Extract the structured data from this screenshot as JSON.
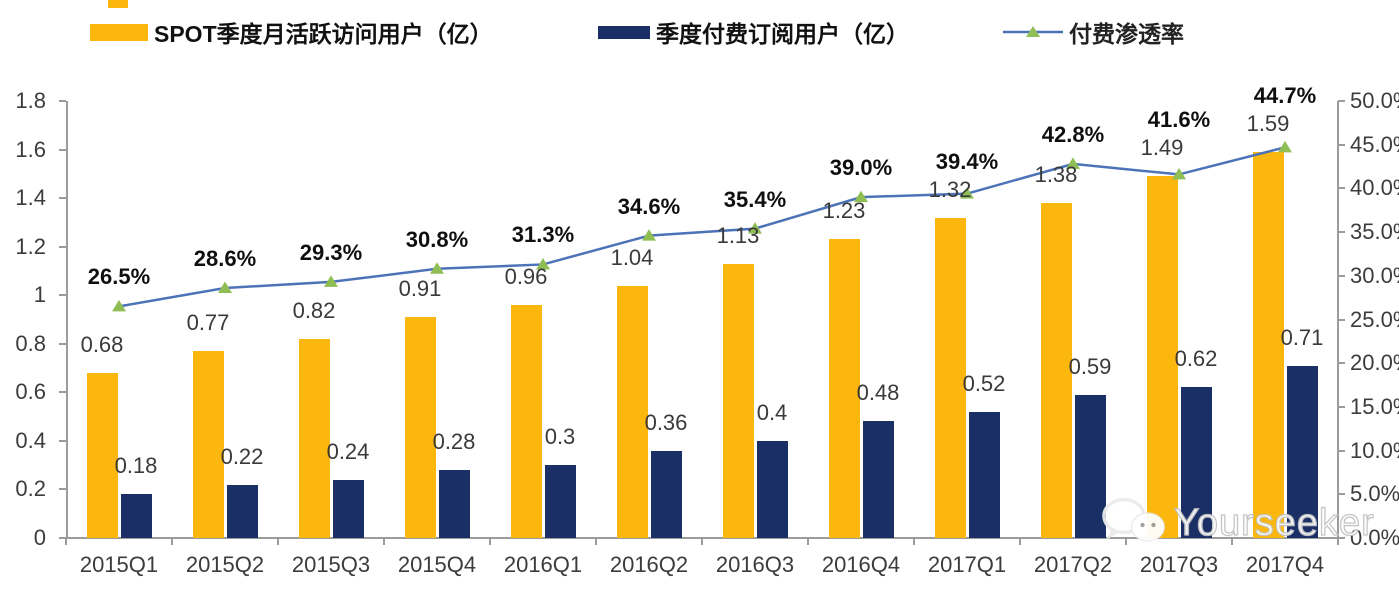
{
  "legend": [
    {
      "label": "SPOT季度月活跃访问用户（亿）",
      "swatch": "bar",
      "color": "#FBB70D"
    },
    {
      "label": "季度付费订阅用户（亿）",
      "swatch": "bar",
      "color": "#1A2F66"
    },
    {
      "label": "付费渗透率",
      "swatch": "line-triangle",
      "color": "#4C72B8",
      "marker_color": "#8FBE55"
    }
  ],
  "watermark": {
    "text": "Yourseeker",
    "icon": "wechat-icon"
  },
  "colors": {
    "bar_mau": "#FBB70D",
    "bar_subs": "#1A2F66",
    "line": "#4C72B8",
    "marker": "#8FBE55",
    "axis": "#9b9b9b"
  },
  "chart_data": {
    "type": "bar",
    "combo": "dual-axis bar + line",
    "title": "",
    "categories": [
      "2015Q1",
      "2015Q2",
      "2015Q3",
      "2015Q4",
      "2016Q1",
      "2016Q2",
      "2016Q3",
      "2016Q4",
      "2017Q1",
      "2017Q2",
      "2017Q3",
      "2017Q4"
    ],
    "series": [
      {
        "name": "SPOT季度月活跃访问用户（亿）",
        "type": "bar",
        "axis": "left",
        "color": "#FBB70D",
        "values": [
          0.68,
          0.77,
          0.82,
          0.91,
          0.96,
          1.04,
          1.13,
          1.23,
          1.32,
          1.38,
          1.49,
          1.59
        ],
        "labels": [
          "0.68",
          "0.77",
          "0.82",
          "0.91",
          "0.96",
          "1.04",
          "1.13",
          "1.23",
          "1.32",
          "1.38",
          "1.49",
          "1.59"
        ]
      },
      {
        "name": "季度付费订阅用户（亿）",
        "type": "bar",
        "axis": "left",
        "color": "#1A2F66",
        "values": [
          0.18,
          0.22,
          0.24,
          0.28,
          0.3,
          0.36,
          0.4,
          0.48,
          0.52,
          0.59,
          0.62,
          0.71
        ],
        "labels": [
          "0.18",
          "0.22",
          "0.24",
          "0.28",
          "0.3",
          "0.36",
          "0.4",
          "0.48",
          "0.52",
          "0.59",
          "0.62",
          "0.71"
        ]
      },
      {
        "name": "付费渗透率",
        "type": "line",
        "axis": "right",
        "color": "#4C72B8",
        "marker": "triangle",
        "marker_color": "#8FBE55",
        "values_percent": [
          26.5,
          28.6,
          29.3,
          30.8,
          31.3,
          34.6,
          35.4,
          39.0,
          39.4,
          42.8,
          41.6,
          44.7
        ],
        "labels": [
          "26.5%",
          "28.6%",
          "29.3%",
          "30.8%",
          "31.3%",
          "34.6%",
          "35.4%",
          "39.0%",
          "39.4%",
          "42.8%",
          "41.6%",
          "44.7%"
        ]
      }
    ],
    "left_axis": {
      "min": 0,
      "max": 1.8,
      "tick_labels": [
        "0",
        "0.2",
        "0.4",
        "0.6",
        "0.8",
        "1",
        "1.2",
        "1.4",
        "1.6",
        "1.8"
      ]
    },
    "right_axis": {
      "min": 0,
      "max": 50,
      "tick_labels": [
        "0.0%",
        "5.0%",
        "10.0%",
        "15.0%",
        "20.0%",
        "25.0%",
        "30.0%",
        "35.0%",
        "40.0%",
        "45.0%",
        "50.0%"
      ]
    },
    "grid": false,
    "legend_position": "top"
  }
}
